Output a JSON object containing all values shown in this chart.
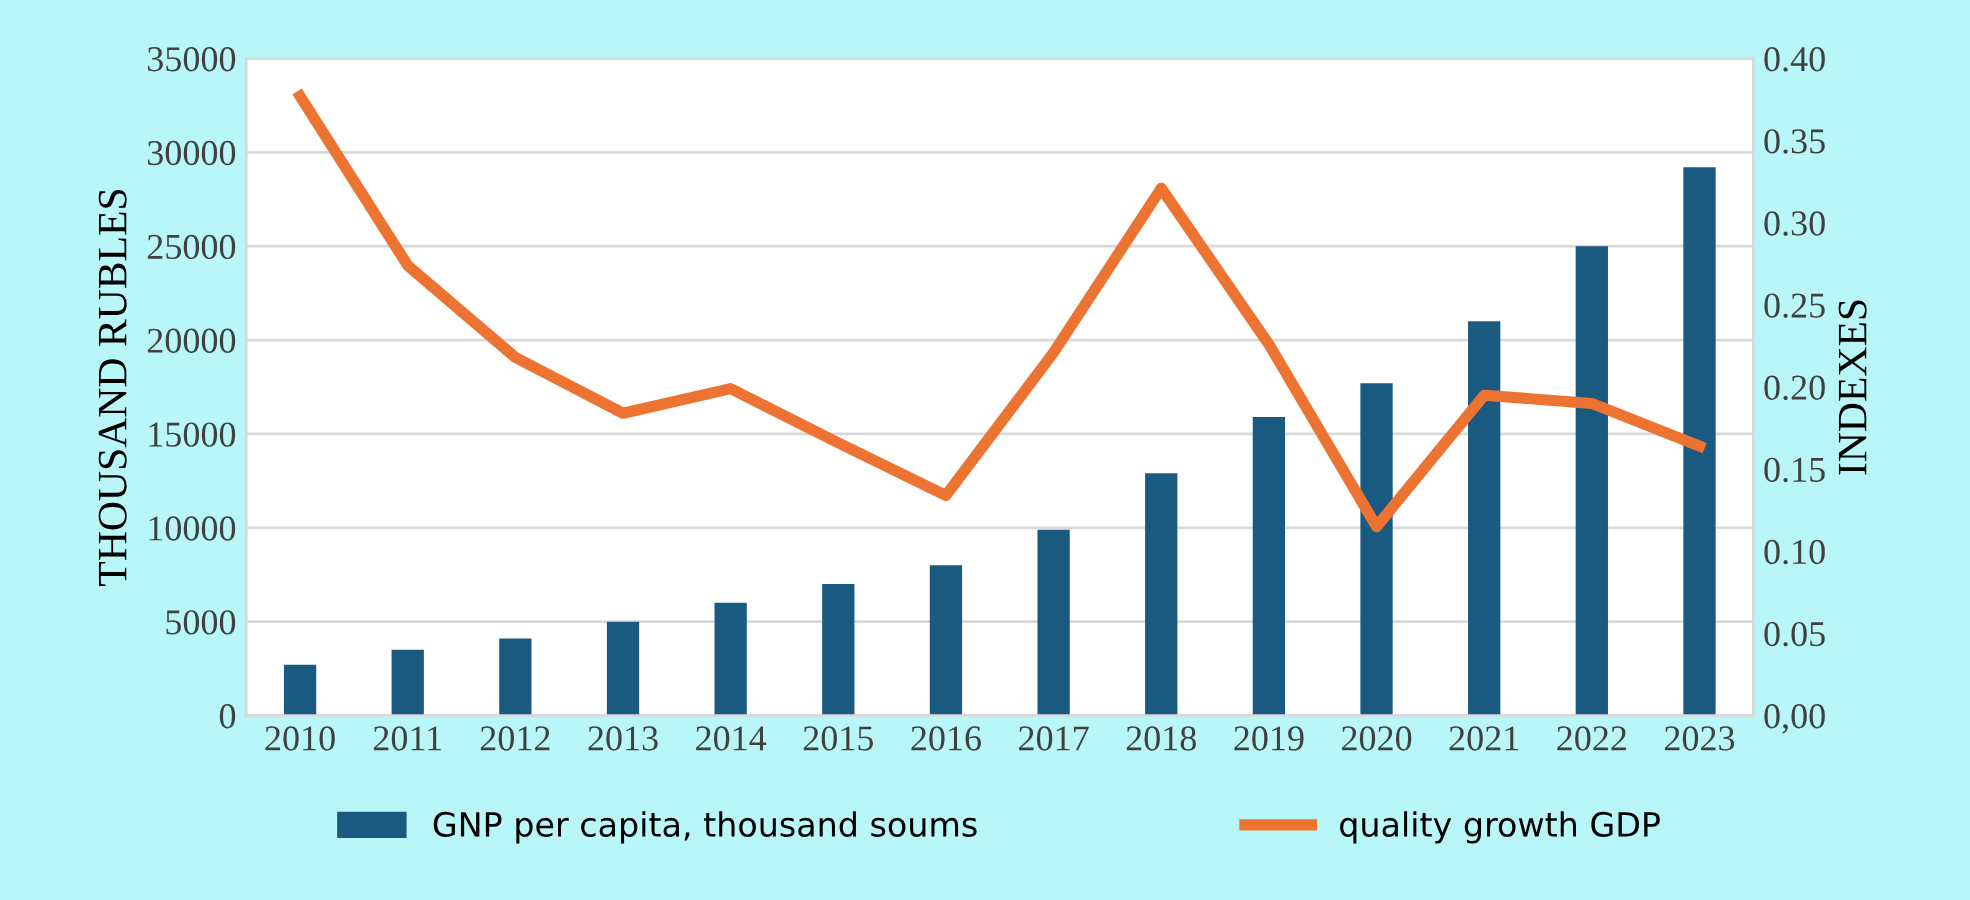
{
  "chart_data": {
    "type": "bar",
    "ylabel": "THOUSAND RUBLES",
    "y2label": "INDEXES",
    "categories": [
      "2010",
      "2011",
      "2012",
      "2013",
      "2014",
      "2015",
      "2016",
      "2017",
      "2018",
      "2019",
      "2020",
      "2021",
      "2022",
      "2023"
    ],
    "series": [
      {
        "name": "GNP per capita, thousand soums",
        "color": "#1a5a80",
        "values": [
          2700,
          3500,
          4100,
          5000,
          6000,
          7000,
          8000,
          9900,
          12900,
          15900,
          17700,
          21000,
          25000,
          29200
        ]
      },
      {
        "name": "quality growth GDP",
        "color": "#ed7332",
        "type": "line",
        "axis": "y2",
        "values": [
          0.377,
          0.274,
          0.218,
          0.184,
          0.199,
          0.166,
          0.134,
          0.221,
          0.321,
          0.226,
          0.115,
          0.195,
          0.19,
          0.164
        ]
      }
    ],
    "ylim": [
      0,
      35000
    ],
    "yticks": [
      0,
      5000,
      10000,
      15000,
      20000,
      25000,
      30000,
      35000
    ],
    "y2lim": [
      0,
      0.4
    ],
    "y2ticks": [
      {
        "value": 0,
        "label": "0,00"
      },
      {
        "value": 0.05,
        "label": "0.05"
      },
      {
        "value": 0.1,
        "label": "0.10"
      },
      {
        "value": 0.15,
        "label": "0.15"
      },
      {
        "value": 0.2,
        "label": "0.20"
      },
      {
        "value": 0.25,
        "label": "0.25"
      },
      {
        "value": 0.3,
        "label": "0.30"
      },
      {
        "value": 0.35,
        "label": "0.35"
      },
      {
        "value": 0.4,
        "label": "0.40"
      }
    ],
    "grid": "y",
    "legend": "bottom",
    "marker": "none",
    "line_style": "solid"
  }
}
